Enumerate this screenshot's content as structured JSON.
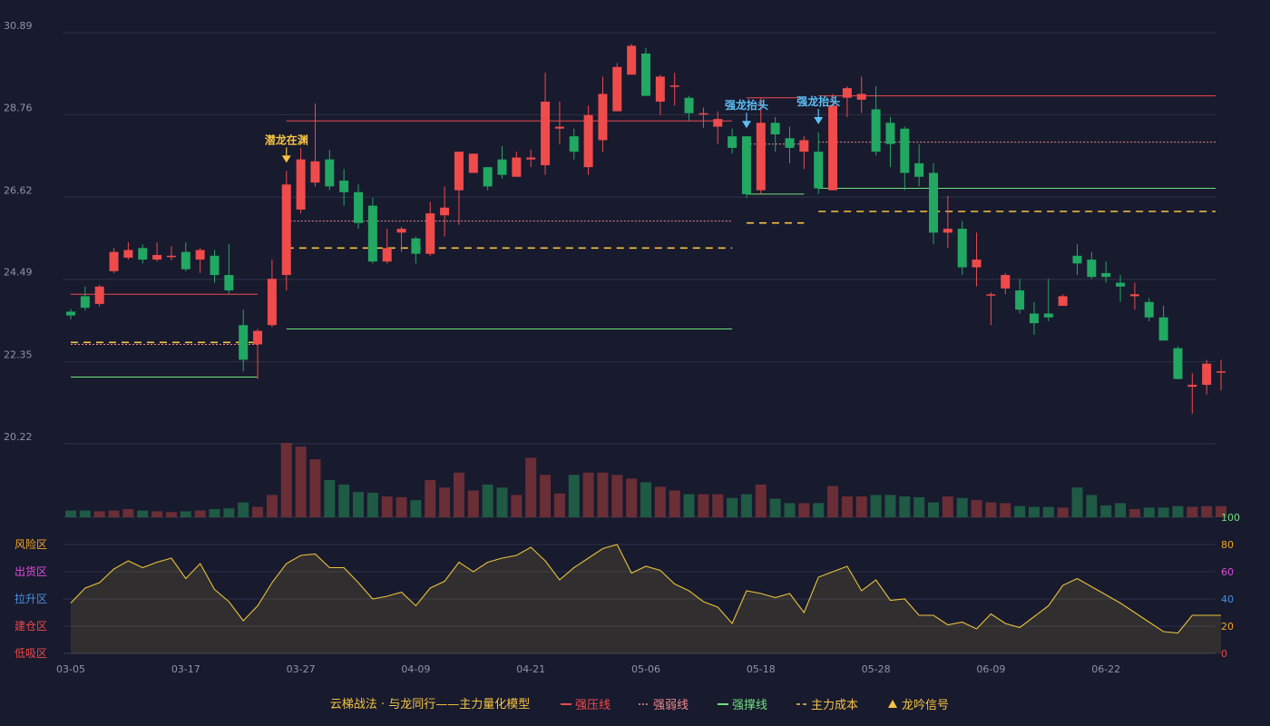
{
  "chart_data": {
    "type": "candlestick",
    "price_axis": {
      "ylim": [
        20.22,
        30.89
      ],
      "ticks": [
        "30.89",
        "28.76",
        "26.62",
        "24.49",
        "22.35",
        "20.22"
      ]
    },
    "x_ticks": [
      "03-05",
      "03-17",
      "03-27",
      "04-09",
      "04-21",
      "05-06",
      "05-18",
      "05-28",
      "06-09",
      "06-22"
    ],
    "candles": [
      [
        23.65,
        23.55,
        23.72,
        23.45
      ],
      [
        24.05,
        23.75,
        24.3,
        23.68
      ],
      [
        23.85,
        24.3,
        24.35,
        23.78
      ],
      [
        24.7,
        25.2,
        25.3,
        24.65
      ],
      [
        25.05,
        25.25,
        25.45,
        25.0
      ],
      [
        25.3,
        25.0,
        25.4,
        24.9
      ],
      [
        25.0,
        25.12,
        25.45,
        24.95
      ],
      [
        25.08,
        25.1,
        25.35,
        24.98
      ],
      [
        25.2,
        24.75,
        25.45,
        24.7
      ],
      [
        25.0,
        25.25,
        25.3,
        24.65
      ],
      [
        25.1,
        24.6,
        25.25,
        24.4
      ],
      [
        24.6,
        24.2,
        25.4,
        24.1
      ],
      [
        23.3,
        22.4,
        23.7,
        22.1
      ],
      [
        22.8,
        23.15,
        23.2,
        21.9
      ],
      [
        23.3,
        24.5,
        25.0,
        23.25
      ],
      [
        24.6,
        26.95,
        27.3,
        24.2
      ],
      [
        26.3,
        27.6,
        27.9,
        26.2
      ],
      [
        27.0,
        27.55,
        29.05,
        26.9
      ],
      [
        27.6,
        26.9,
        27.85,
        26.8
      ],
      [
        27.05,
        26.75,
        27.35,
        26.4
      ],
      [
        26.75,
        25.95,
        26.95,
        25.8
      ],
      [
        26.4,
        24.95,
        26.6,
        24.9
      ],
      [
        24.95,
        25.3,
        25.8,
        24.9
      ],
      [
        25.7,
        25.8,
        25.85,
        25.2
      ],
      [
        25.55,
        25.15,
        25.6,
        24.9
      ],
      [
        25.15,
        26.2,
        26.5,
        25.1
      ],
      [
        26.15,
        26.35,
        26.9,
        25.6
      ],
      [
        26.8,
        27.8,
        27.75,
        25.9
      ],
      [
        27.25,
        27.75,
        27.75,
        27.3
      ],
      [
        27.4,
        26.9,
        27.3,
        26.8
      ],
      [
        27.6,
        27.2,
        27.95,
        27.1
      ],
      [
        27.15,
        27.65,
        27.8,
        27.2
      ],
      [
        27.6,
        27.65,
        27.85,
        27.4
      ],
      [
        27.45,
        29.1,
        29.85,
        27.2
      ],
      [
        28.4,
        28.45,
        29.1,
        28.0
      ],
      [
        28.2,
        27.8,
        28.4,
        27.6
      ],
      [
        27.4,
        28.75,
        29.0,
        27.2
      ],
      [
        28.1,
        29.3,
        29.75,
        27.8
      ],
      [
        28.85,
        30.0,
        30.1,
        28.85
      ],
      [
        29.8,
        30.55,
        30.6,
        29.8
      ],
      [
        30.35,
        29.25,
        30.5,
        29.25
      ],
      [
        29.1,
        29.75,
        29.8,
        28.75
      ],
      [
        29.5,
        29.52,
        29.85,
        29.0
      ],
      [
        29.2,
        28.8,
        29.25,
        28.6
      ],
      [
        28.78,
        28.8,
        28.95,
        28.42
      ],
      [
        28.45,
        28.65,
        28.85,
        28.0
      ],
      [
        28.2,
        27.9,
        28.4,
        27.75
      ],
      [
        28.2,
        26.7,
        28.2,
        26.6
      ],
      [
        26.8,
        28.55,
        29.2,
        26.7
      ],
      [
        28.55,
        28.25,
        28.7,
        27.8
      ],
      [
        28.15,
        27.9,
        28.45,
        27.5
      ],
      [
        27.8,
        28.1,
        28.2,
        27.35
      ],
      [
        27.8,
        26.85,
        28.3,
        26.7
      ],
      [
        26.8,
        29.0,
        29.3,
        26.8
      ],
      [
        29.2,
        29.45,
        29.5,
        28.7
      ],
      [
        29.15,
        29.3,
        29.75,
        28.8
      ],
      [
        28.9,
        27.8,
        29.5,
        27.7
      ],
      [
        28.55,
        28.0,
        28.7,
        27.4
      ],
      [
        28.4,
        27.25,
        28.45,
        26.8
      ],
      [
        27.5,
        27.15,
        28.0,
        26.9
      ],
      [
        27.25,
        25.7,
        27.5,
        25.4
      ],
      [
        25.7,
        25.8,
        26.65,
        25.3
      ],
      [
        25.8,
        24.8,
        26.0,
        24.6
      ],
      [
        24.8,
        25.0,
        25.7,
        24.3
      ],
      [
        24.1,
        24.1,
        24.15,
        23.3
      ],
      [
        24.25,
        24.6,
        24.65,
        24.1
      ],
      [
        24.2,
        23.7,
        24.5,
        23.6
      ],
      [
        23.6,
        23.35,
        23.9,
        23.05
      ],
      [
        23.6,
        23.5,
        24.5,
        23.4
      ],
      [
        23.8,
        24.05,
        24.1,
        23.8
      ],
      [
        25.1,
        24.9,
        25.4,
        24.6
      ],
      [
        25.0,
        24.55,
        25.2,
        24.5
      ],
      [
        24.65,
        24.55,
        24.95,
        24.4
      ],
      [
        24.4,
        24.3,
        24.6,
        23.9
      ],
      [
        24.05,
        24.1,
        24.4,
        23.7
      ],
      [
        23.9,
        23.5,
        24.0,
        23.4
      ],
      [
        23.5,
        22.9,
        23.8,
        22.9
      ],
      [
        22.7,
        21.9,
        22.75,
        21.9
      ],
      [
        21.7,
        21.75,
        22.05,
        21.0
      ],
      [
        21.75,
        22.3,
        22.4,
        21.5
      ],
      [
        22.1,
        22.1,
        22.4,
        21.6
      ]
    ],
    "volume": [
      9,
      9,
      8,
      9,
      11,
      9,
      8,
      7,
      8,
      9,
      11,
      12,
      20,
      14,
      30,
      100,
      95,
      78,
      50,
      44,
      34,
      33,
      28,
      27,
      23,
      50,
      40,
      60,
      36,
      44,
      40,
      30,
      80,
      57,
      32,
      57,
      60,
      60,
      57,
      52,
      47,
      41,
      36,
      31,
      31,
      31,
      26,
      31,
      44,
      25,
      19,
      19,
      19,
      42,
      28,
      28,
      30,
      30,
      28,
      27,
      20,
      28,
      26,
      23,
      20,
      19,
      15,
      14,
      14,
      13,
      40,
      30,
      16,
      19,
      11,
      13,
      13,
      15,
      14,
      15,
      15
    ],
    "indicator": {
      "zones": [
        "风险区",
        "出货区",
        "拉升区",
        "建仓区",
        "低吸区"
      ],
      "ticks": [
        "100",
        "80",
        "60",
        "40",
        "20",
        "0"
      ],
      "values": [
        37,
        48,
        52,
        62,
        68,
        63,
        67,
        70,
        55,
        66,
        47,
        38,
        24,
        35,
        52,
        66,
        72,
        73,
        63,
        63,
        52,
        40,
        42,
        45,
        35,
        48,
        53,
        67,
        60,
        67,
        70,
        72,
        78,
        68,
        54,
        63,
        70,
        77,
        80,
        59,
        64,
        61,
        51,
        46,
        38,
        34,
        22,
        46,
        44,
        41,
        44,
        30,
        56,
        60,
        64,
        46,
        54,
        39,
        40,
        28,
        28,
        21,
        23,
        18,
        29,
        22,
        19,
        27,
        35,
        50,
        55,
        49,
        43,
        37,
        30,
        23,
        16,
        15,
        28,
        28,
        28
      ]
    },
    "signals": [
      {
        "label": "潜龙在渊",
        "index": 15,
        "color": "#f5c342"
      },
      {
        "label": "强龙抬头",
        "index": 47,
        "color": "#5bc0f5"
      },
      {
        "label": "强龙抬头",
        "index": 52,
        "color": "#5bc0f5"
      }
    ],
    "levels": [
      {
        "kind": "strong_pressure",
        "value": 24.1,
        "from": 0,
        "to": 13
      },
      {
        "kind": "strong_weak",
        "value": 22.8,
        "from": 0,
        "to": 13
      },
      {
        "kind": "main_cost",
        "value": 22.85,
        "from": 0,
        "to": 13
      },
      {
        "kind": "strong_support",
        "value": 21.95,
        "from": 0,
        "to": 13
      },
      {
        "kind": "strong_pressure",
        "value": 28.6,
        "from": 15,
        "to": 46
      },
      {
        "kind": "strong_weak",
        "value": 26.0,
        "from": 15,
        "to": 46
      },
      {
        "kind": "main_cost",
        "value": 25.3,
        "from": 15,
        "to": 46
      },
      {
        "kind": "strong_support",
        "value": 23.2,
        "from": 15,
        "to": 46
      },
      {
        "kind": "strong_pressure",
        "value": 29.2,
        "from": 47,
        "to": 51
      },
      {
        "kind": "strong_weak",
        "value": 28.0,
        "from": 47,
        "to": 51
      },
      {
        "kind": "main_cost",
        "value": 25.95,
        "from": 47,
        "to": 51
      },
      {
        "kind": "strong_support",
        "value": 26.7,
        "from": 47,
        "to": 51
      },
      {
        "kind": "strong_pressure",
        "value": 29.25,
        "from": 52,
        "to": 80
      },
      {
        "kind": "strong_weak",
        "value": 28.05,
        "from": 52,
        "to": 80
      },
      {
        "kind": "main_cost",
        "value": 26.25,
        "from": 52,
        "to": 80
      },
      {
        "kind": "strong_support",
        "value": 26.85,
        "from": 52,
        "to": 80
      }
    ]
  },
  "legend": {
    "title": "云梯战法 · 与龙同行——主力量化模型",
    "items": [
      {
        "label": "强压线",
        "color": "#ef4b4b",
        "style": "solid"
      },
      {
        "label": "强弱线",
        "color": "#f08a8a",
        "style": "dotted"
      },
      {
        "label": "强撑线",
        "color": "#6ee07a",
        "style": "solid"
      },
      {
        "label": "主力成本",
        "color": "#f5c342",
        "style": "dashed"
      },
      {
        "label": "龙吟信号",
        "color": "#f5c342",
        "style": "triangle"
      }
    ]
  },
  "colors": {
    "up": "#ef4b4b",
    "down": "#21a862",
    "indicator_line": "#e8c23a",
    "zone_risk": "#f5a623",
    "zone_distribute": "#e04bdc",
    "zone_pullup": "#4a90e2",
    "zone_build": "#f04747",
    "zone_dip": "#f04747"
  }
}
